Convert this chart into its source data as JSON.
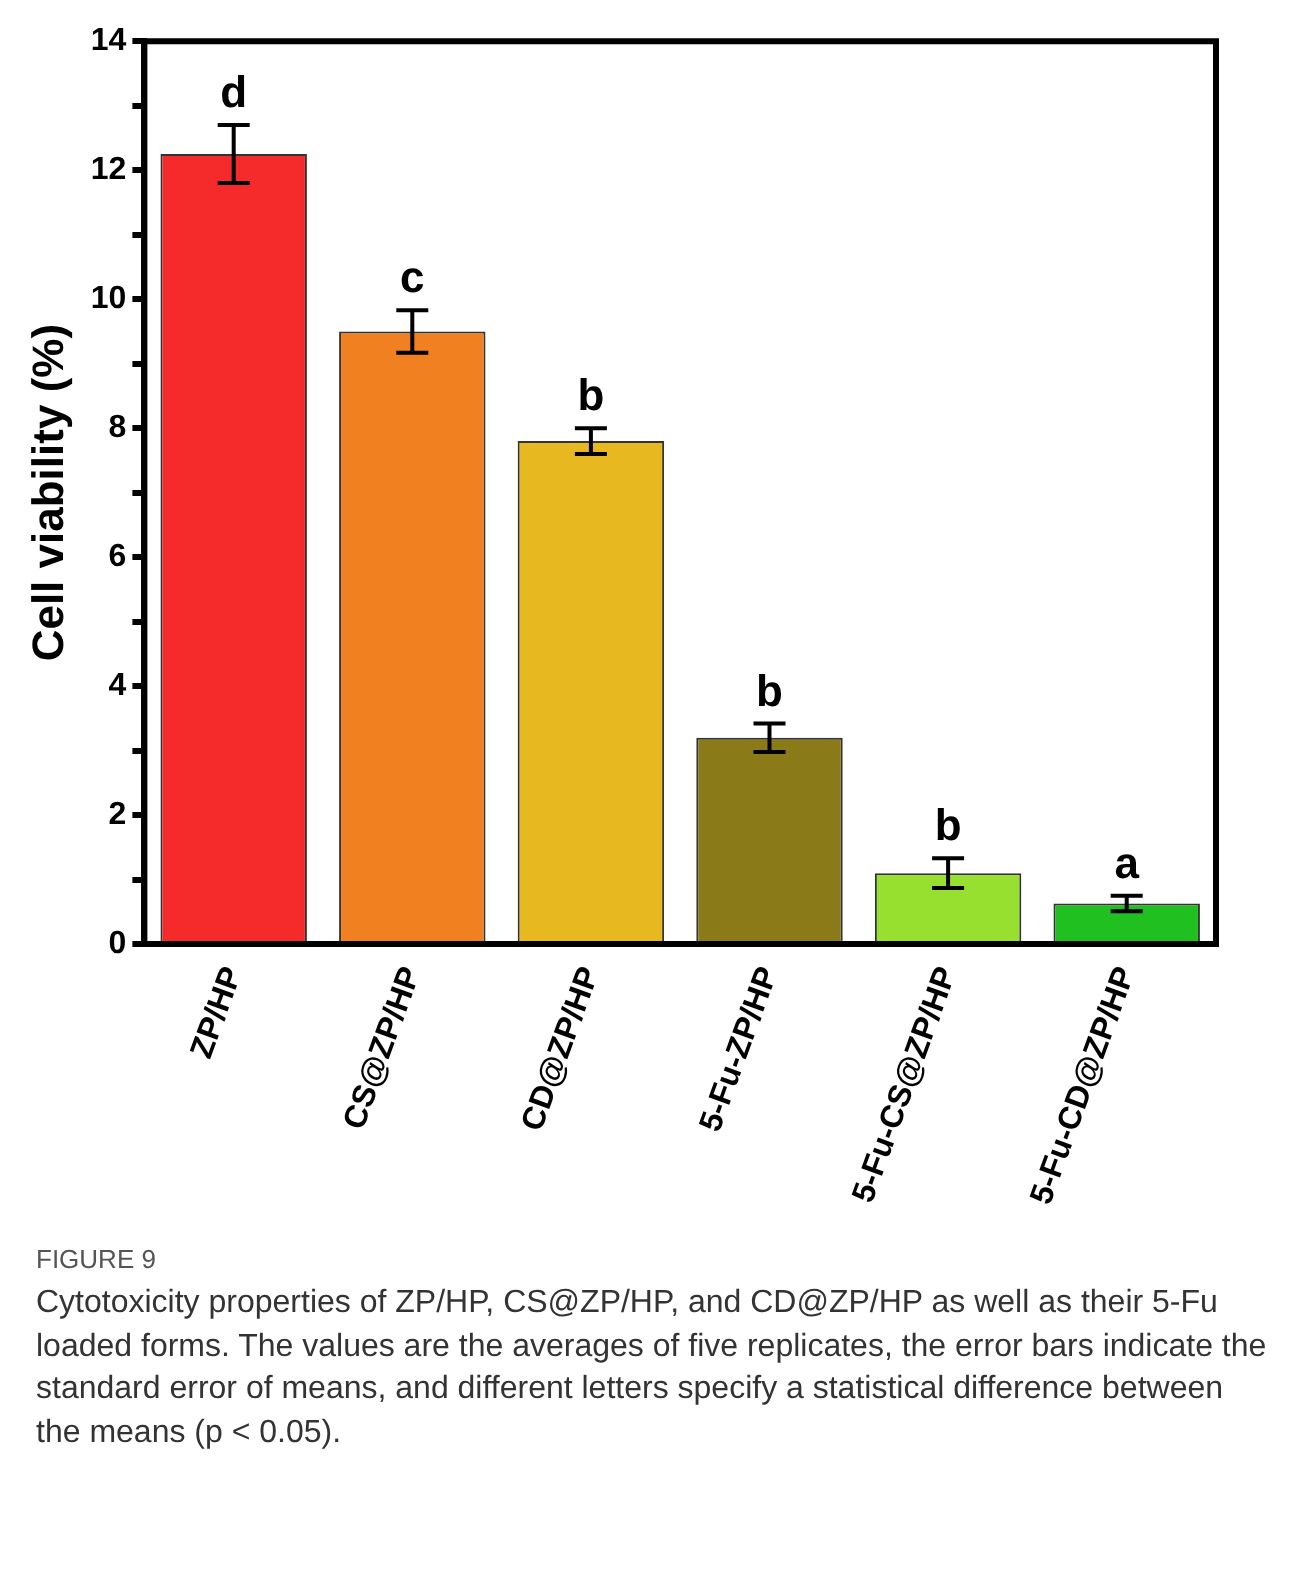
{
  "chart_data": {
    "type": "bar",
    "title": "FIGURE 9",
    "ylabel": "Cell viability (%)",
    "categories": [
      "ZP/HP",
      "CS@ZP/HP",
      "CD@ZP/HP",
      "5-Fu-ZP/HP",
      "5-Fu-CS@ZP/HP",
      "5-Fu-CD@ZP/HP"
    ],
    "values": [
      12.25,
      9.5,
      7.8,
      3.2,
      1.1,
      0.63
    ],
    "colors": [
      "#f52a2a",
      "#f08020",
      "#e8b820",
      "#8a7a18",
      "#98e030",
      "#20c020"
    ],
    "errors": [
      0.45,
      0.33,
      0.2,
      0.22,
      0.23,
      0.12
    ],
    "ylim": [
      0,
      14
    ],
    "yticks": [
      0,
      {
        "value": 1,
        "label": null
      },
      2,
      {
        "value": 3,
        "label": null
      },
      4,
      {
        "value": 5,
        "label": null
      },
      6,
      {
        "value": 7,
        "label": null
      },
      8,
      {
        "value": 9,
        "label": null
      },
      10,
      {
        "value": 11,
        "label": null
      },
      12,
      {
        "value": 13,
        "label": null
      },
      14
    ],
    "grid": false,
    "annotations": [
      {
        "text": "d",
        "x": "ZP/HP",
        "y": 12.7
      },
      {
        "text": "c",
        "x": "CS@ZP/HP",
        "y": 9.83
      },
      {
        "text": "b",
        "x": "CD@ZP/HP",
        "y": 8.0
      },
      {
        "text": "b",
        "x": "5-Fu-ZP/HP",
        "y": 3.42
      },
      {
        "text": "b",
        "x": "5-Fu-CS@ZP/HP",
        "y": 1.33
      },
      {
        "text": "a",
        "x": "5-Fu-CD@ZP/HP",
        "y": 0.75
      },
      "Cytotoxicity properties of ZP/HP, CS@ZP/HP, and CD@ZP/HP as well as their 5-Fu loaded forms. The values are the averages of five replicates, the error bars indicate the standard error of means, and different letters specify a statistical difference between the means (p < 0.05)."
    ]
  }
}
